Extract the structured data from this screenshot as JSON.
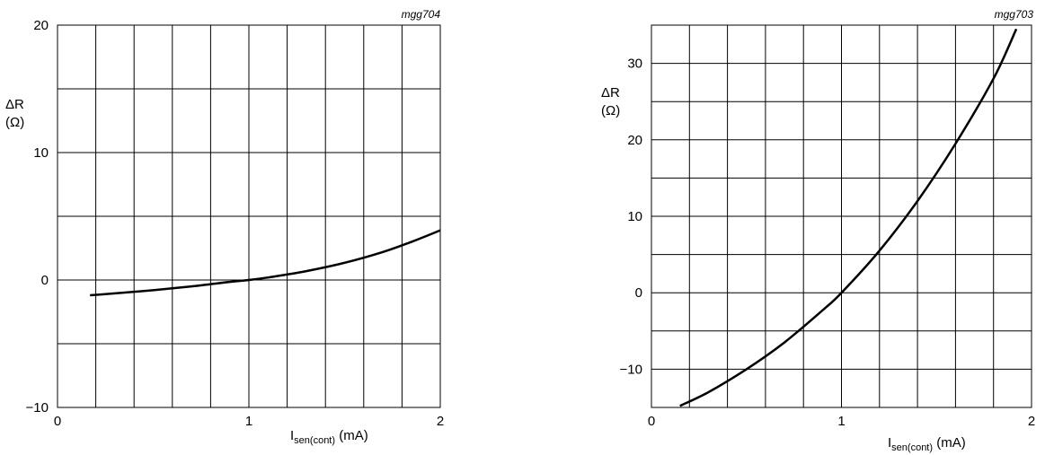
{
  "chart_data": [
    {
      "type": "line",
      "figure_code": "mgg704",
      "ylabel_line1": "ΔR",
      "ylabel_line2": "(Ω)",
      "xlabel_main": "I",
      "xlabel_sub": "sen(cont)",
      "xlabel_unit": " (mA)",
      "xlim": [
        0,
        2
      ],
      "ylim": [
        -10,
        20
      ],
      "xticks": [
        0,
        1,
        2
      ],
      "yticks": [
        -10,
        0,
        10,
        20
      ],
      "xtick_labels": [
        "0",
        "1",
        "2"
      ],
      "ytick_labels": [
        "−10",
        "0",
        "10",
        "20"
      ],
      "grid": true,
      "x_grid_step": 0.2,
      "y_grid_step": 5,
      "series": [
        {
          "x": [
            0.17,
            0.3,
            0.5,
            0.7,
            0.9,
            1.0,
            1.1,
            1.3,
            1.5,
            1.7,
            1.85,
            2.0
          ],
          "y": [
            -1.2,
            -1.05,
            -0.8,
            -0.5,
            -0.15,
            0.0,
            0.2,
            0.7,
            1.35,
            2.2,
            3.0,
            3.9
          ]
        }
      ]
    },
    {
      "type": "line",
      "figure_code": "mgg703",
      "ylabel_line1": "ΔR",
      "ylabel_line2": "(Ω)",
      "xlabel_main": "I",
      "xlabel_sub": "sen(cont)",
      "xlabel_unit": " (mA)",
      "xlim": [
        0,
        2
      ],
      "ylim": [
        -15,
        35
      ],
      "xticks": [
        0,
        1,
        2
      ],
      "yticks": [
        -10,
        0,
        10,
        20,
        30
      ],
      "xtick_labels": [
        "0",
        "1",
        "2"
      ],
      "ytick_labels": [
        "−10",
        "0",
        "10",
        "20",
        "30"
      ],
      "grid": true,
      "x_grid_step": 0.2,
      "y_grid_step": 5,
      "series": [
        {
          "x": [
            0.15,
            0.3,
            0.5,
            0.7,
            0.9,
            1.0,
            1.2,
            1.4,
            1.6,
            1.8,
            1.92
          ],
          "y": [
            -14.8,
            -13.0,
            -10.0,
            -6.5,
            -2.3,
            0.0,
            5.5,
            12.0,
            19.5,
            28.0,
            34.5
          ]
        }
      ]
    }
  ]
}
